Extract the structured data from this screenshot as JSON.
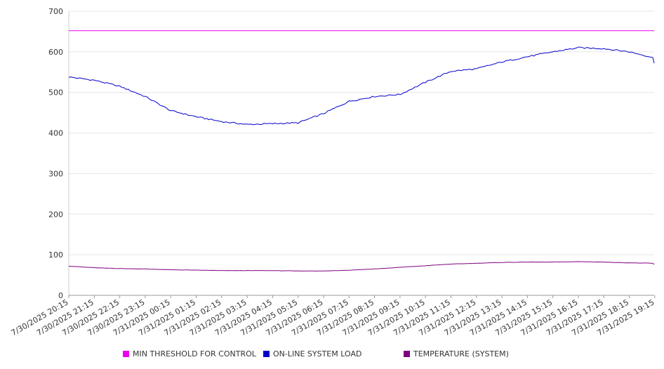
{
  "chart_data": {
    "type": "line",
    "ylim": [
      0,
      700
    ],
    "yticks": [
      0,
      100,
      200,
      300,
      400,
      500,
      600,
      700
    ],
    "grid": true,
    "legend_position": "bottom",
    "x": [
      "7/30/2025 20:15",
      "7/30/2025 21:15",
      "7/30/2025 22:15",
      "7/30/2025 23:15",
      "7/31/2025 00:15",
      "7/31/2025 01:15",
      "7/31/2025 02:15",
      "7/31/2025 03:15",
      "7/31/2025 04:15",
      "7/31/2025 05:15",
      "7/31/2025 06:15",
      "7/31/2025 07:15",
      "7/31/2025 08:15",
      "7/31/2025 09:15",
      "7/31/2025 10:15",
      "7/31/2025 11:15",
      "7/31/2025 12:15",
      "7/31/2025 13:15",
      "7/31/2025 14:15",
      "7/31/2025 15:15",
      "7/31/2025 16:15",
      "7/31/2025 17:15",
      "7/31/2025 18:15",
      "7/31/2025 19:15",
      "7/31/2025 19:45"
    ],
    "x_tick_labels": [
      "7/30/2025 20:15",
      "7/30/2025 21:15",
      "7/30/2025 22:15",
      "7/30/2025 23:15",
      "7/31/2025 00:15",
      "7/31/2025 01:15",
      "7/31/2025 02:15",
      "7/31/2025 03:15",
      "7/31/2025 04:15",
      "7/31/2025 05:15",
      "7/31/2025 06:15",
      "7/31/2025 07:15",
      "7/31/2025 08:15",
      "7/31/2025 09:15",
      "7/31/2025 10:15",
      "7/31/2025 11:15",
      "7/31/2025 12:15",
      "7/31/2025 13:15",
      "7/31/2025 14:15",
      "7/31/2025 15:15",
      "7/31/2025 16:15",
      "7/31/2025 17:15",
      "7/31/2025 18:15",
      "7/31/2025 19:15"
    ],
    "series": [
      {
        "name": "MIN THRESHOLD FOR CONTROL",
        "color": "#ee00ee",
        "values": [
          652,
          652,
          652,
          652,
          652,
          652,
          652,
          652,
          652,
          652,
          652,
          652,
          652,
          652,
          652,
          652,
          652,
          652,
          652,
          652,
          652,
          652,
          652,
          652,
          652
        ]
      },
      {
        "name": "ON-LINE SYSTEM LOAD",
        "color": "#0000cc",
        "values": [
          538,
          530,
          515,
          490,
          455,
          440,
          428,
          421,
          423,
          425,
          448,
          478,
          490,
          495,
          525,
          552,
          558,
          575,
          588,
          600,
          610,
          608,
          600,
          585,
          572
        ]
      },
      {
        "name": "TEMPERATURE (SYSTEM)",
        "color": "#800080",
        "values": [
          72,
          68,
          66,
          65,
          63,
          62,
          61,
          61,
          61,
          60,
          60,
          62,
          65,
          69,
          73,
          77,
          79,
          81,
          82,
          82,
          83,
          82,
          80,
          79,
          76
        ]
      }
    ]
  }
}
